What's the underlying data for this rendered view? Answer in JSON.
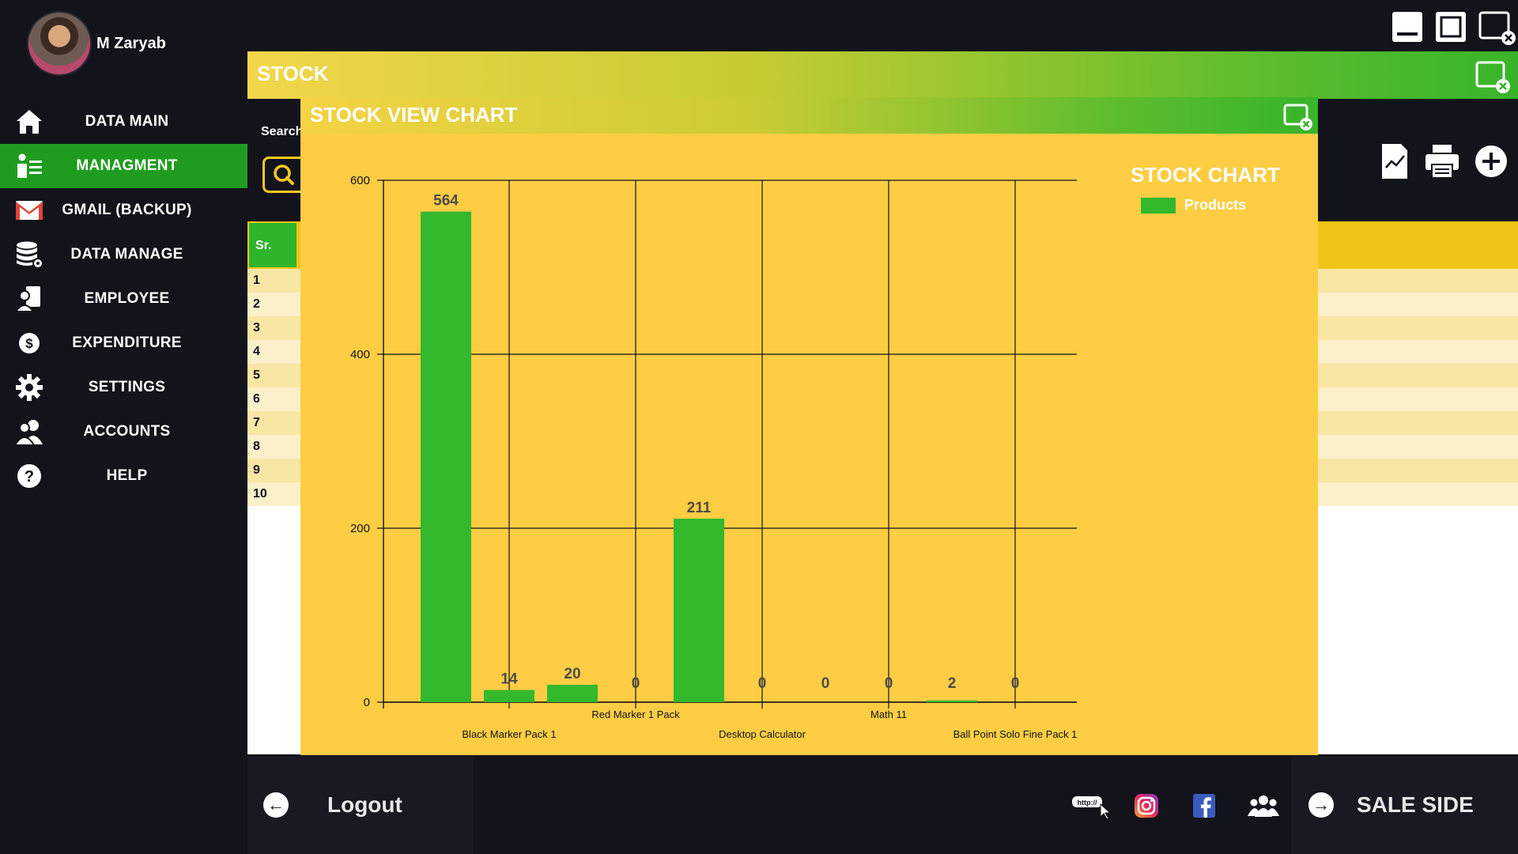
{
  "user": {
    "name": "M Zaryab"
  },
  "sidebar": {
    "items": [
      {
        "label": "DATA MAIN",
        "icon": "home-icon"
      },
      {
        "label": "MANAGMENT",
        "icon": "management-icon",
        "active": true
      },
      {
        "label": "GMAIL (BACKUP)",
        "icon": "gmail-icon"
      },
      {
        "label": "DATA MANAGE",
        "icon": "database-icon"
      },
      {
        "label": "EMPLOYEE",
        "icon": "employee-icon"
      },
      {
        "label": "EXPENDITURE",
        "icon": "dollar-icon"
      },
      {
        "label": "SETTINGS",
        "icon": "gear-icon"
      },
      {
        "label": "ACCOUNTS",
        "icon": "accounts-icon"
      },
      {
        "label": "HELP",
        "icon": "help-icon"
      }
    ]
  },
  "stock": {
    "title": "STOCK",
    "search_label": "Search",
    "table": {
      "sr_header": "Sr.",
      "rows": [
        "1",
        "2",
        "3",
        "4",
        "5",
        "6",
        "7",
        "8",
        "9",
        "10"
      ]
    }
  },
  "chart_window": {
    "title": "STOCK VIEW CHART",
    "legend_title": "STOCK CHART"
  },
  "chart_data": {
    "type": "bar",
    "categories": [
      "",
      "Black Marker Pack 1",
      "",
      "Red Marker 1 Pack",
      "",
      "Desktop Calculator",
      "",
      "Math 11",
      "",
      "Ball Point Solo Fine Pack 1"
    ],
    "series": [
      {
        "name": "Products",
        "values": [
          564,
          14,
          20,
          0,
          211,
          0,
          0,
          0,
          2,
          0
        ],
        "color": "#34b82c"
      }
    ],
    "xlabel": "",
    "ylabel": "",
    "ylim": [
      0,
      600
    ],
    "yticks": [
      0,
      200,
      400,
      600
    ],
    "grid": true,
    "legend_position": "top-right"
  },
  "bottom": {
    "logout_label": "Logout",
    "sale_label": "SALE SIDE",
    "social_icons": [
      "website-icon",
      "instagram-icon",
      "facebook-icon",
      "group-icon"
    ]
  },
  "colors": {
    "accent_green": "#1f9c1f",
    "bar_green": "#34b82c",
    "chart_bg": "#fecd43",
    "dark_bg": "#13131b"
  }
}
